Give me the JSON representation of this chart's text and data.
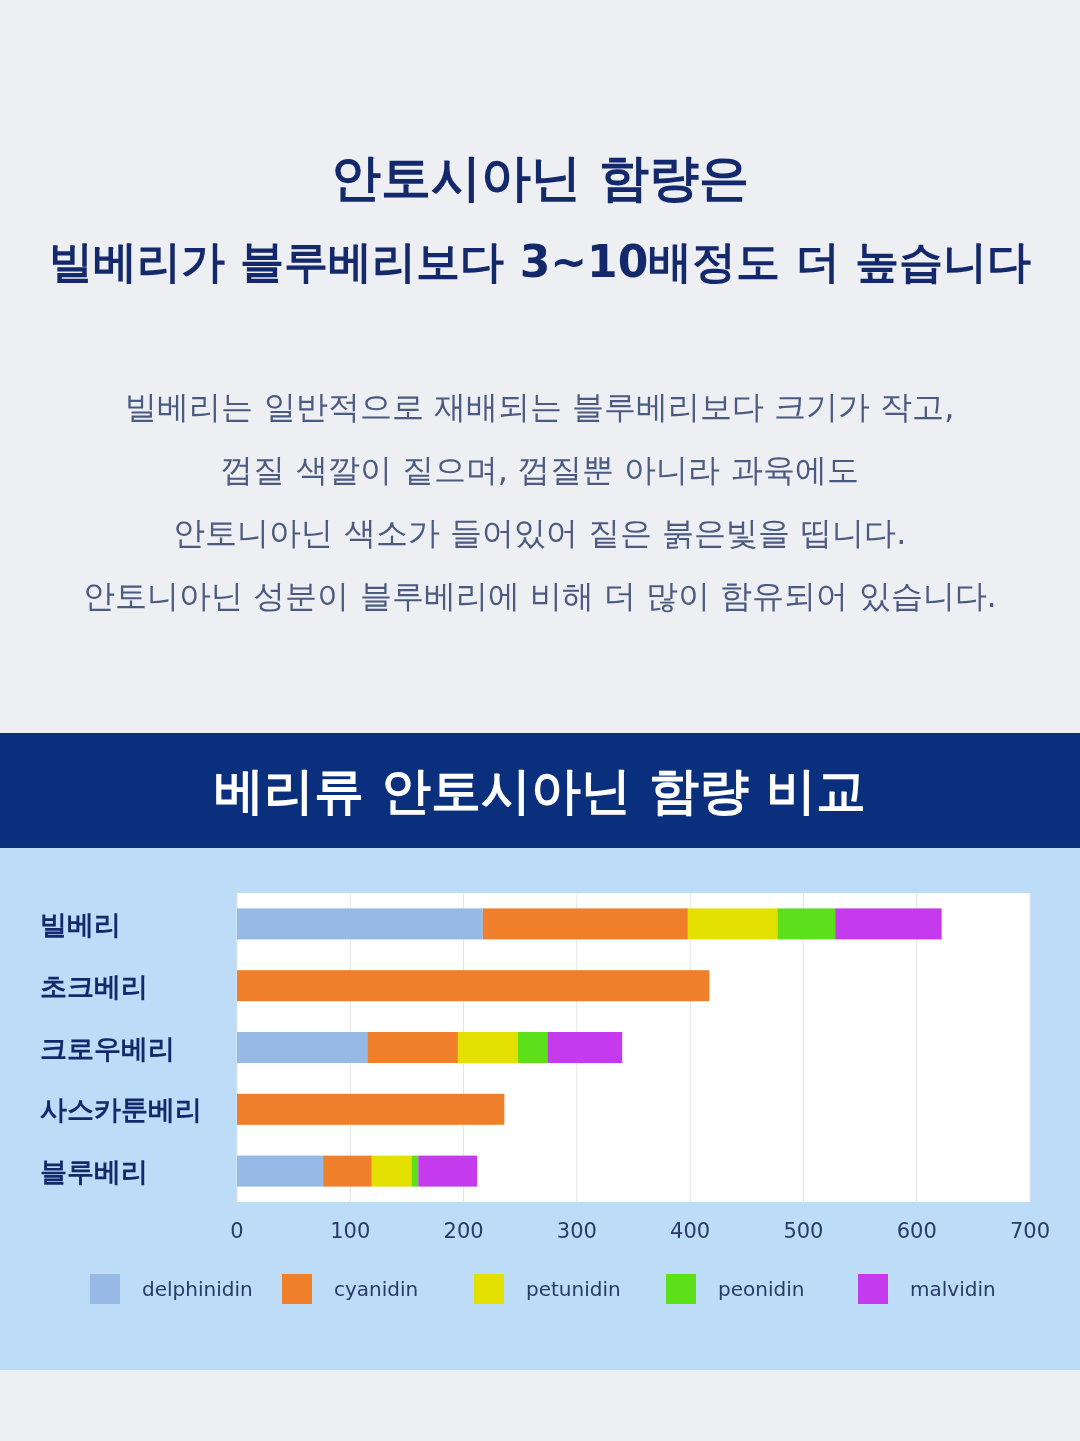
{
  "chart_data": {
    "type": "bar",
    "orientation": "horizontal",
    "stacked": true,
    "title": "안토시아닌 함량은\n빌베리가 블루베리보다 3~10배정도 더 높습니다",
    "subtitle": "베리류 안토시아닌 함량 비교",
    "annotations": [
      "빌베리는 일반적으로 재배되는 블루베리보다 크기가 작고,",
      "껍질 색깔이 짙으며, 껍질뿐 아니라 과육에도",
      "안토니아닌 색소가 들어있어 짙은 붉은빛을 띱니다.",
      "안토니아닌 성분이 블루베리에 비해 더 많이 함유되어 있습니다."
    ],
    "categories": [
      "빌베리",
      "초크베리",
      "크로우베리",
      "사스카툰베리",
      "블루베리"
    ],
    "series": [
      {
        "name": "delphinidin",
        "color": "#97b9e6",
        "values": [
          217,
          null,
          115,
          null,
          76
        ]
      },
      {
        "name": "cyanidin",
        "color": "#f07f2c",
        "values": [
          181,
          417,
          80,
          236,
          43
        ]
      },
      {
        "name": "petunidin",
        "color": "#e3e000",
        "values": [
          79,
          null,
          53,
          null,
          35
        ]
      },
      {
        "name": "peonidin",
        "color": "#5ce01a",
        "values": [
          51,
          null,
          26,
          null,
          6
        ]
      },
      {
        "name": "malvidin",
        "color": "#c43aec",
        "values": [
          94,
          null,
          66,
          null,
          52
        ]
      }
    ],
    "xlim": [
      0,
      700
    ],
    "xticks": [
      0,
      100,
      200,
      300,
      400,
      500,
      600,
      700
    ],
    "grid": "x",
    "legend": "bottom"
  }
}
